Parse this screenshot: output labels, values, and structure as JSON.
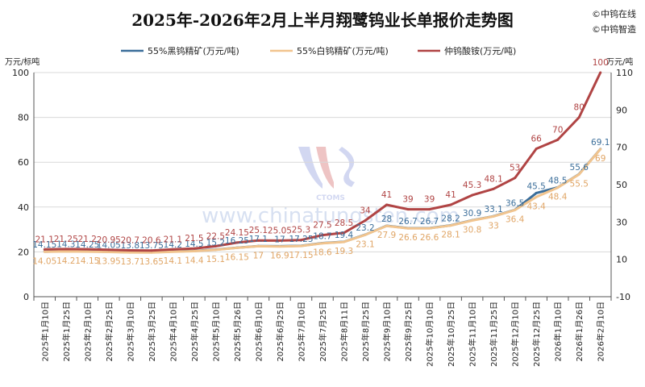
{
  "page": {
    "title": "2025年-2026年2月上半月翔鹭钨业长单报价走势图",
    "credits": [
      "©中钨在线",
      "©中钨智造"
    ],
    "watermark": "www.chinatungsten.com",
    "watermark_logo": "CTOMS"
  },
  "chart_data": {
    "type": "line",
    "title": "2025年-2026年2月上半月翔鹭钨业长单报价走势图",
    "left_axis": {
      "unit": "万元/标吨",
      "ylim": [
        0,
        100
      ],
      "ticks": [
        0,
        20,
        40,
        60,
        80,
        100
      ]
    },
    "right_axis": {
      "unit": "万元/吨",
      "ylim": [
        -10,
        110
      ],
      "ticks": [
        -10,
        10,
        30,
        50,
        70,
        90,
        110
      ]
    },
    "grid": true,
    "legend_position": "top",
    "categories": [
      "2025年1月10日",
      "2025年1月25日",
      "2025年2月10日",
      "2025年2月25日",
      "2025年3月10日",
      "2025年3月25日",
      "2025年4月10日",
      "2025年4月25日",
      "2025年5月10日",
      "2025年5月26日",
      "2025年6月10日",
      "2025年6月25日",
      "2025年7月10日",
      "2025年7月25日",
      "2025年8月11日",
      "2025年8月25日",
      "2025年9月10日",
      "2025年9月25日",
      "2025年10月10日",
      "2025年10月25日",
      "2025年11月10日",
      "2025年11月25日",
      "2025年12月10日",
      "2025年12月25日",
      "2026年1月10日",
      "2026年1月26日",
      "2026年2月10日"
    ],
    "series": [
      {
        "name": "55%黑钨精矿(万元/吨)",
        "axis": "right",
        "color": "#3b6e9a",
        "values": [
          14.15,
          14.3,
          14.25,
          14.05,
          13.8,
          13.75,
          14.2,
          14.5,
          15.2,
          16.25,
          17.1,
          17,
          17.25,
          18.7,
          19.4,
          23.2,
          28,
          26.7,
          26.7,
          28.2,
          30.9,
          33.1,
          36.5,
          45.5,
          48.5,
          55.6,
          69.1
        ],
        "labels": [
          "14.15",
          "14.3",
          "14.25",
          "14.05",
          "13.8",
          "13.75",
          "14.2",
          "14.5",
          "15.2",
          "16.25",
          "17.1",
          "17",
          "17.25",
          "18.7",
          "19.4",
          "23.2",
          "28",
          "26.7",
          "26.7",
          "28.2",
          "30.9",
          "33.1",
          "36.5",
          "45.5",
          "48.5",
          "55.6",
          "69.1"
        ]
      },
      {
        "name": "55%白钨精矿(万元/吨)",
        "axis": "right",
        "color": "#f1c48e",
        "values": [
          14.05,
          14.2,
          14.15,
          13.95,
          13.7,
          13.65,
          14.1,
          14.4,
          15.1,
          16.15,
          17,
          16.9,
          17.15,
          18.6,
          19.3,
          23.1,
          27.9,
          26.6,
          26.6,
          28.1,
          30.8,
          33,
          36.4,
          43.4,
          48.4,
          55.5,
          69
        ],
        "labels": [
          "14.05",
          "14.2",
          "14.15",
          "13.95",
          "13.7",
          "13.65",
          "14.1",
          "14.4",
          "15.1",
          "16.15",
          "17",
          "16.9",
          "17.15",
          "18.6",
          "19.3",
          "23.1",
          "27.9",
          "26.6",
          "26.6",
          "28.1",
          "30.8",
          "33",
          "36.4",
          "43.4",
          "48.4",
          "55.5",
          "69"
        ]
      },
      {
        "name": "仲钨酸铵(万元/吨)",
        "axis": "left",
        "color": "#b04444",
        "values": [
          21.1,
          21.25,
          21.2,
          20.95,
          20.7,
          20.6,
          21.1,
          21.5,
          22.5,
          24.15,
          25.1,
          25.05,
          25.3,
          27.5,
          28.5,
          34,
          41,
          39,
          39,
          41,
          45.3,
          48.1,
          53,
          66,
          70,
          80,
          100
        ],
        "labels": [
          "21.1",
          "21.25",
          "21.2",
          "20.95",
          "20.7",
          "20.6",
          "21.1",
          "21.5",
          "22.5",
          "24.15",
          "25.1",
          "25.05",
          "25.3",
          "27.5",
          "28.5",
          "34",
          "41",
          "39",
          "39",
          "41",
          "45.3",
          "48.1",
          "53",
          "66",
          "70",
          "80",
          "100"
        ]
      }
    ]
  }
}
